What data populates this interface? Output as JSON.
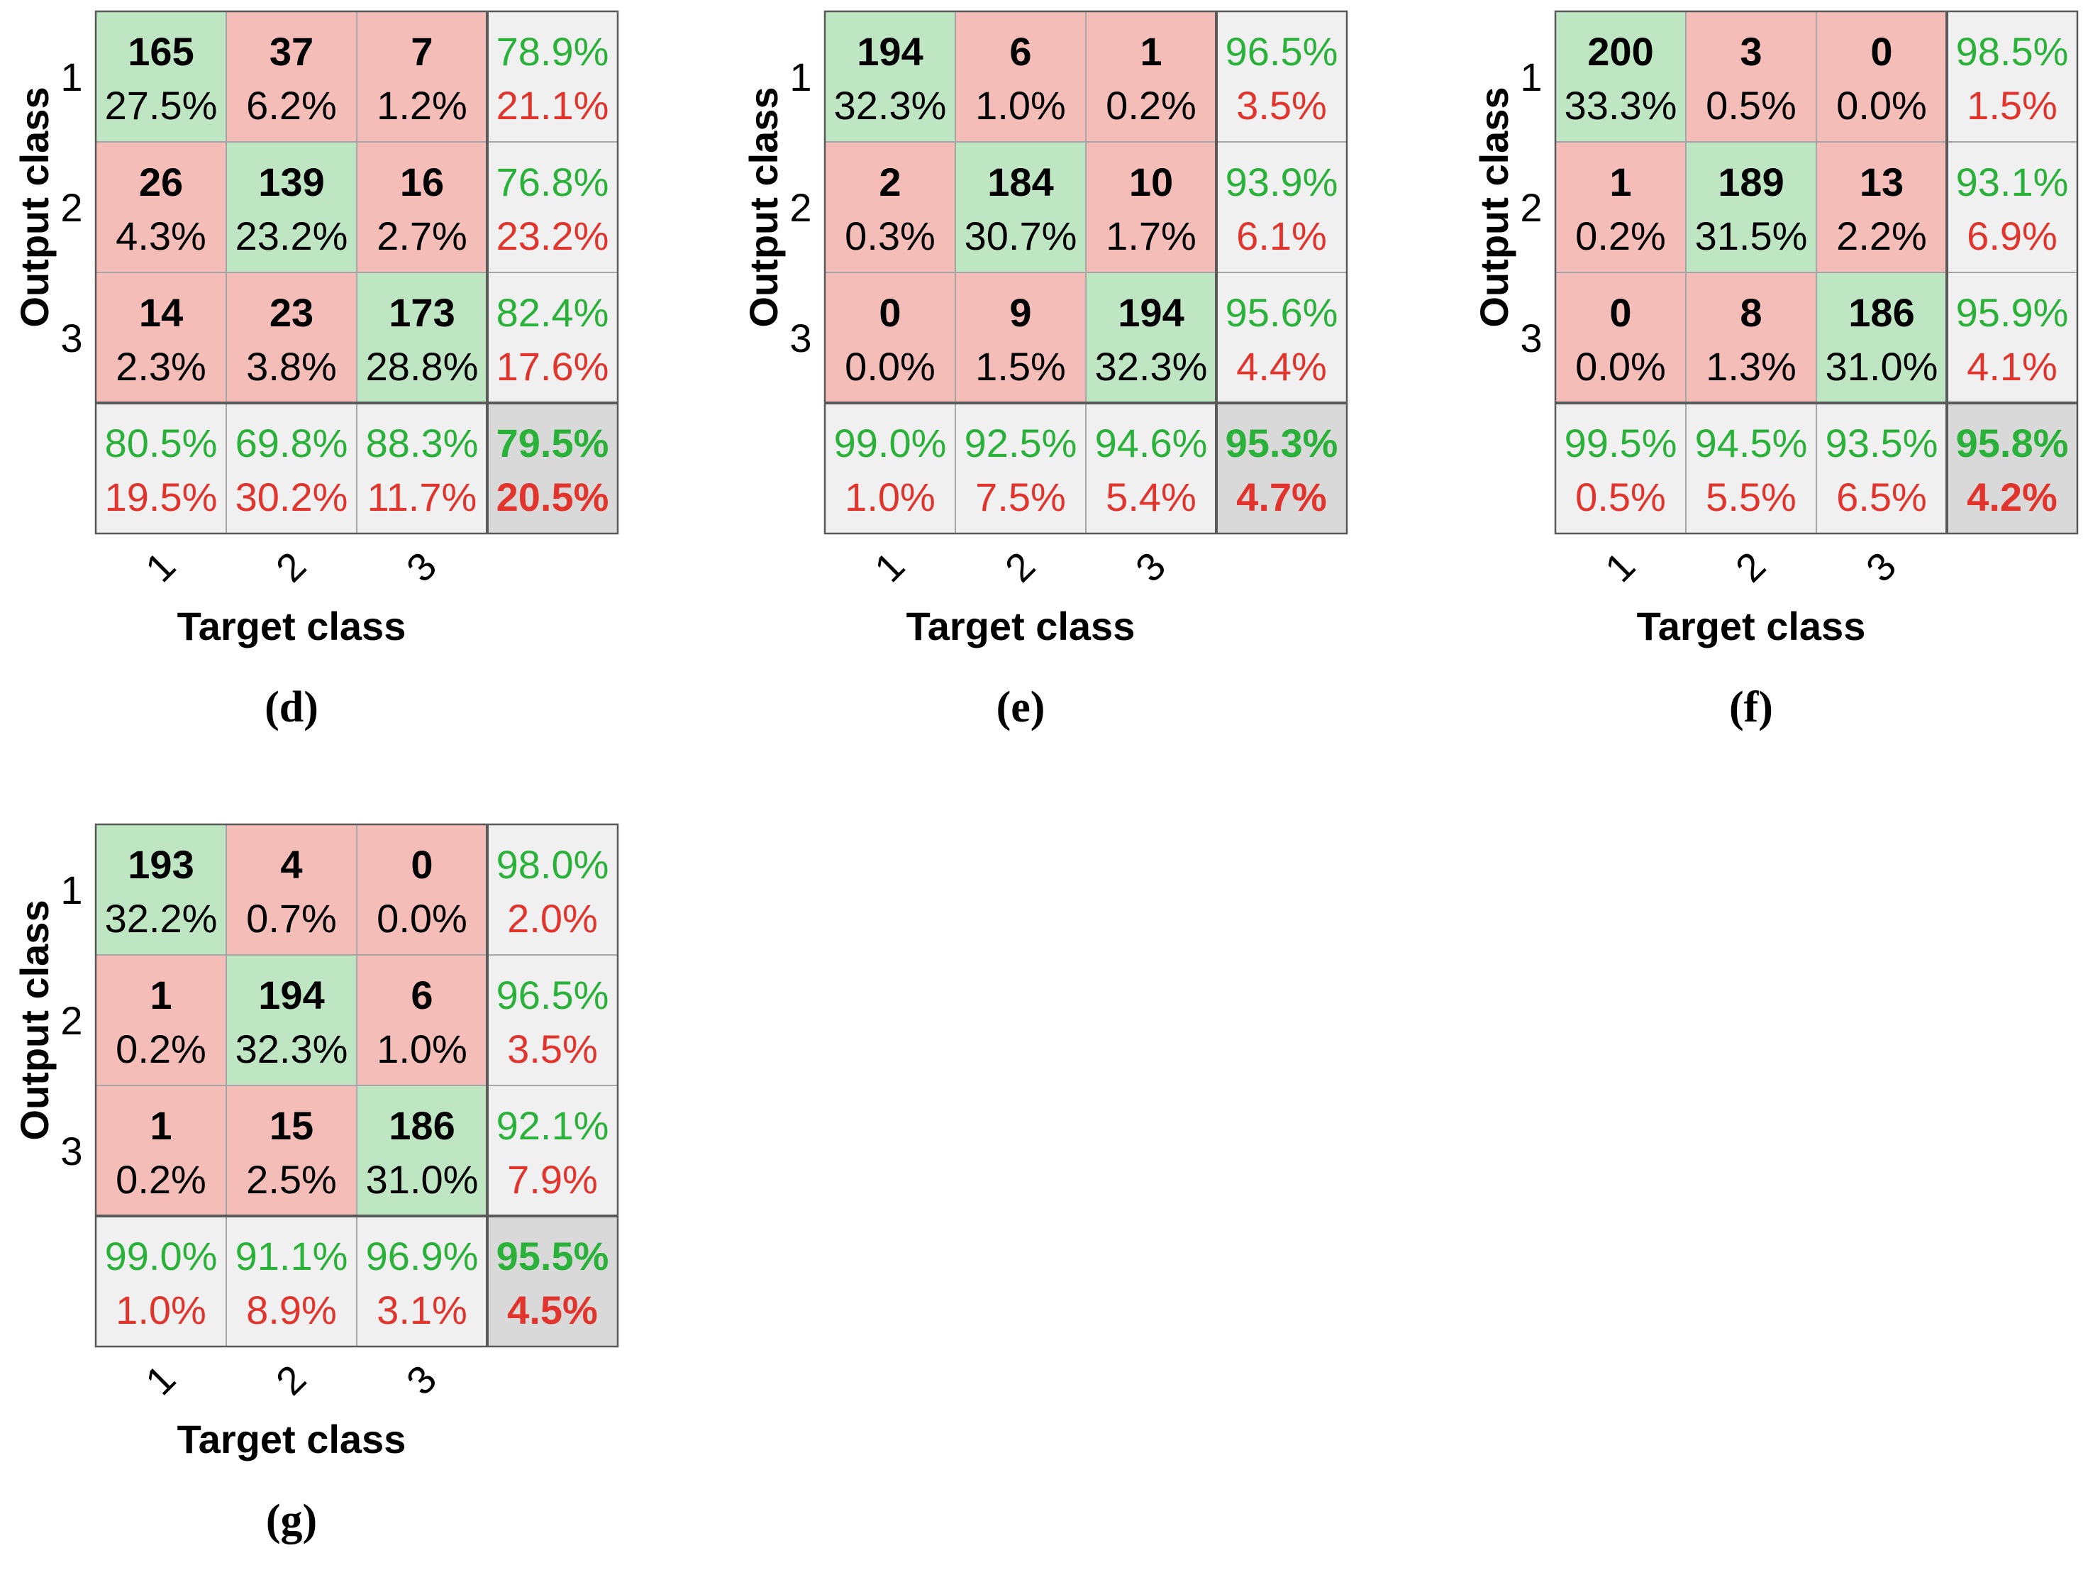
{
  "colors": {
    "correct_bg": "#bfe6c2",
    "error_bg": "#f4bdb8",
    "summary_bg": "#f0f0f0",
    "overall_bg": "#d9d9d9",
    "green_text": "#2ab13a",
    "red_text": "#e0342c",
    "black_text": "#000000",
    "grid_line": "#a6a6a6",
    "dark_line": "#595959"
  },
  "chart_data": [
    {
      "type": "table",
      "panel_label": "(d)",
      "xlabel": "Target class",
      "ylabel": "Output class",
      "row_labels": [
        "1",
        "2",
        "3"
      ],
      "col_labels": [
        "1",
        "2",
        "3"
      ],
      "counts": [
        [
          165,
          37,
          7
        ],
        [
          26,
          139,
          16
        ],
        [
          14,
          23,
          173
        ]
      ],
      "cell_percent": [
        [
          "27.5%",
          "6.2%",
          "1.2%"
        ],
        [
          "4.3%",
          "23.2%",
          "2.7%"
        ],
        [
          "2.3%",
          "3.8%",
          "28.8%"
        ]
      ],
      "row_summary": [
        [
          "78.9%",
          "21.1%"
        ],
        [
          "76.8%",
          "23.2%"
        ],
        [
          "82.4%",
          "17.6%"
        ]
      ],
      "col_summary": [
        [
          "80.5%",
          "19.5%"
        ],
        [
          "69.8%",
          "30.2%"
        ],
        [
          "88.3%",
          "11.7%"
        ]
      ],
      "overall": [
        "79.5%",
        "20.5%"
      ]
    },
    {
      "type": "table",
      "panel_label": "(e)",
      "xlabel": "Target class",
      "ylabel": "Output class",
      "row_labels": [
        "1",
        "2",
        "3"
      ],
      "col_labels": [
        "1",
        "2",
        "3"
      ],
      "counts": [
        [
          194,
          6,
          1
        ],
        [
          2,
          184,
          10
        ],
        [
          0,
          9,
          194
        ]
      ],
      "cell_percent": [
        [
          "32.3%",
          "1.0%",
          "0.2%"
        ],
        [
          "0.3%",
          "30.7%",
          "1.7%"
        ],
        [
          "0.0%",
          "1.5%",
          "32.3%"
        ]
      ],
      "row_summary": [
        [
          "96.5%",
          "3.5%"
        ],
        [
          "93.9%",
          "6.1%"
        ],
        [
          "95.6%",
          "4.4%"
        ]
      ],
      "col_summary": [
        [
          "99.0%",
          "1.0%"
        ],
        [
          "92.5%",
          "7.5%"
        ],
        [
          "94.6%",
          "5.4%"
        ]
      ],
      "overall": [
        "95.3%",
        "4.7%"
      ]
    },
    {
      "type": "table",
      "panel_label": "(f)",
      "xlabel": "Target class",
      "ylabel": "Output class",
      "row_labels": [
        "1",
        "2",
        "3"
      ],
      "col_labels": [
        "1",
        "2",
        "3"
      ],
      "counts": [
        [
          200,
          3,
          0
        ],
        [
          1,
          189,
          13
        ],
        [
          0,
          8,
          186
        ]
      ],
      "cell_percent": [
        [
          "33.3%",
          "0.5%",
          "0.0%"
        ],
        [
          "0.2%",
          "31.5%",
          "2.2%"
        ],
        [
          "0.0%",
          "1.3%",
          "31.0%"
        ]
      ],
      "row_summary": [
        [
          "98.5%",
          "1.5%"
        ],
        [
          "93.1%",
          "6.9%"
        ],
        [
          "95.9%",
          "4.1%"
        ]
      ],
      "col_summary": [
        [
          "99.5%",
          "0.5%"
        ],
        [
          "94.5%",
          "5.5%"
        ],
        [
          "93.5%",
          "6.5%"
        ]
      ],
      "overall": [
        "95.8%",
        "4.2%"
      ]
    },
    {
      "type": "table",
      "panel_label": "(g)",
      "xlabel": "Target class",
      "ylabel": "Output class",
      "row_labels": [
        "1",
        "2",
        "3"
      ],
      "col_labels": [
        "1",
        "2",
        "3"
      ],
      "counts": [
        [
          193,
          4,
          0
        ],
        [
          1,
          194,
          6
        ],
        [
          1,
          15,
          186
        ]
      ],
      "cell_percent": [
        [
          "32.2%",
          "0.7%",
          "0.0%"
        ],
        [
          "0.2%",
          "32.3%",
          "1.0%"
        ],
        [
          "0.2%",
          "2.5%",
          "31.0%"
        ]
      ],
      "row_summary": [
        [
          "98.0%",
          "2.0%"
        ],
        [
          "96.5%",
          "3.5%"
        ],
        [
          "92.1%",
          "7.9%"
        ]
      ],
      "col_summary": [
        [
          "99.0%",
          "1.0%"
        ],
        [
          "91.1%",
          "8.9%"
        ],
        [
          "96.9%",
          "3.1%"
        ]
      ],
      "overall": [
        "95.5%",
        "4.5%"
      ]
    }
  ]
}
